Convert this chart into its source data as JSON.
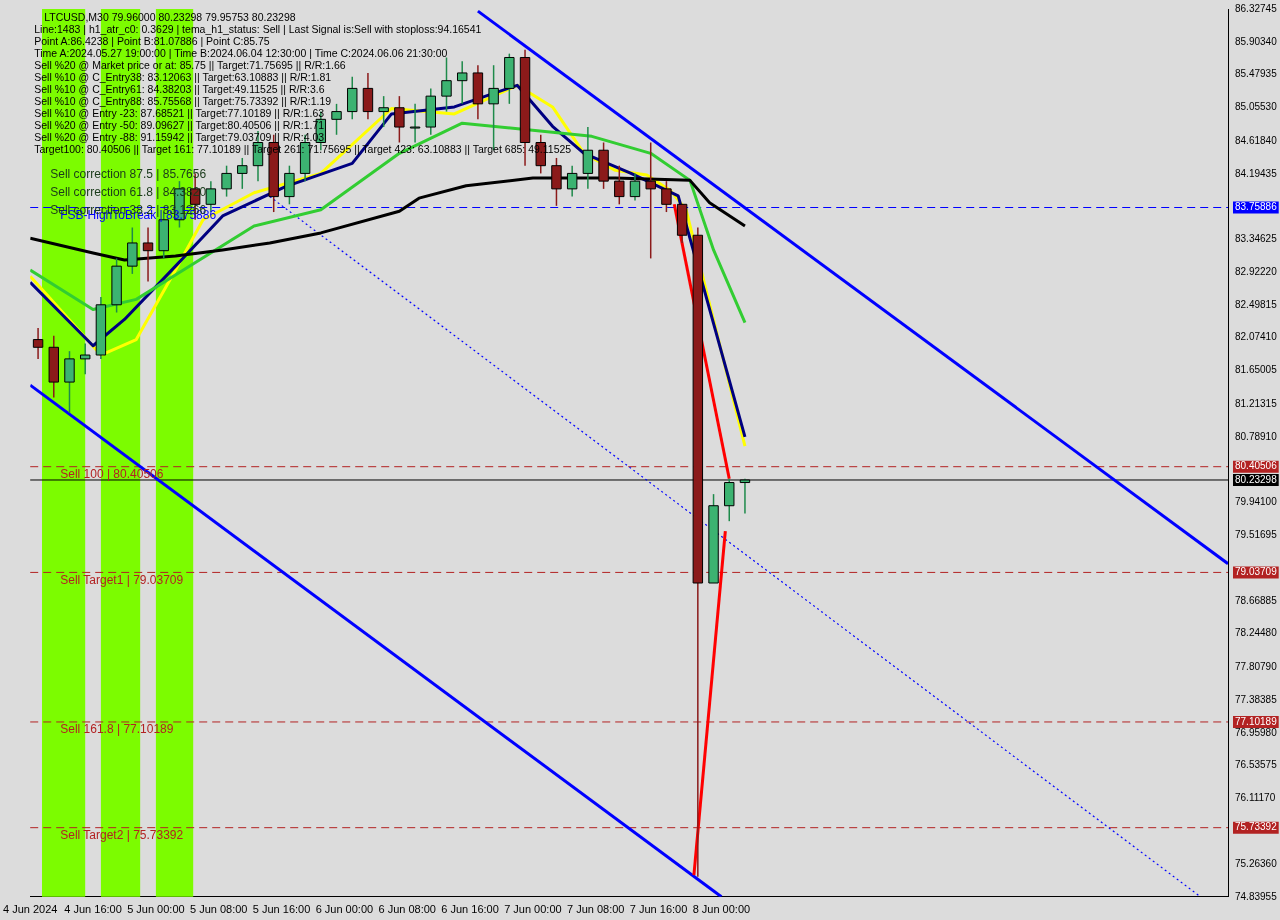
{
  "chart_data": {
    "type": "candlestick",
    "title": "LTCUSD,M30 79.96000 80.23298 79.95753 80.23298",
    "annotations": [
      "Line:1483 | h1_atr_c0: 0.3629 | tema_h1_status: Sell | Last Signal is:Sell with stoploss:94.16541",
      "Point A:86.4238 | Point B:81.07886 | Point C:85.75",
      "Time A:2024.05.27 19:00:00 | Time B:2024.06.04 12:30:00 | Time C:2024.06.06 21:30:00",
      "Sell %20 @ Market price or at: 85.75 || Target:71.75695 || R/R:1.66",
      "Sell %10 @ C_Entry38: 83.12063 || Target:63.10883 || R/R:1.81",
      "Sell %10 @ C_Entry61: 84.38203 || Target:49.11525 || R/R:3.6",
      "Sell %10 @ C_Entry88: 85.75568 || Target:75.73392 || R/R:1.19",
      "Sell %10 @ Entry -23: 87.68521 || Target:77.10189 || R/R:1.63",
      "Sell %20 @ Entry -50: 89.09627 || Target:80.40506 || R/R:1.71",
      "Sell %20 @ Entry -88: 91.15942 || Target:79.03709 || R/R:4.03",
      "Target100: 80.40506 || Target 161: 77.10189 || Target 261: 71.75695 || Target 423: 63.10883 || Target 685: 49.11525",
      "Sell correction 87.5 | 85.7656",
      "Sell correction 61.8 | 84.3820",
      "Sell correction 38.2 | 83.1266"
    ],
    "x": [
      "2024-06-04T09:00",
      "2024-06-04T11:00",
      "2024-06-04T13:00",
      "2024-06-04T15:00",
      "2024-06-04T17:00",
      "2024-06-04T19:00",
      "2024-06-04T21:00",
      "2024-06-04T23:00",
      "2024-06-05T01:00",
      "2024-06-05T03:00",
      "2024-06-05T05:00",
      "2024-06-05T07:00",
      "2024-06-05T09:00",
      "2024-06-05T11:00",
      "2024-06-05T13:00",
      "2024-06-05T15:00",
      "2024-06-05T17:00",
      "2024-06-05T19:00",
      "2024-06-05T21:00",
      "2024-06-05T23:00",
      "2024-06-06T01:00",
      "2024-06-06T03:00",
      "2024-06-06T05:00",
      "2024-06-06T07:00",
      "2024-06-06T09:00",
      "2024-06-06T11:00",
      "2024-06-06T13:00",
      "2024-06-06T15:00",
      "2024-06-06T17:00",
      "2024-06-06T19:00",
      "2024-06-06T21:00",
      "2024-06-06T23:00",
      "2024-06-07T01:00",
      "2024-06-07T03:00",
      "2024-06-07T05:00",
      "2024-06-07T07:00",
      "2024-06-07T09:00",
      "2024-06-07T11:00",
      "2024-06-07T13:00",
      "2024-06-07T15:00",
      "2024-06-07T17:00",
      "2024-06-07T19:00",
      "2024-06-07T21:00",
      "2024-06-07T23:00",
      "2024-06-08T01:00",
      "2024-06-08T03:00"
    ],
    "ohlc": [
      [
        82.05,
        82.2,
        81.8,
        81.95
      ],
      [
        81.95,
        82.1,
        81.3,
        81.5
      ],
      [
        81.5,
        81.9,
        81.1,
        81.8
      ],
      [
        81.8,
        82.0,
        81.6,
        81.85
      ],
      [
        81.85,
        82.6,
        81.8,
        82.5
      ],
      [
        82.5,
        83.1,
        82.4,
        83.0
      ],
      [
        83.0,
        83.5,
        82.9,
        83.3
      ],
      [
        83.3,
        83.5,
        82.8,
        83.2
      ],
      [
        83.2,
        83.7,
        83.1,
        83.6
      ],
      [
        83.6,
        84.1,
        83.5,
        84.0
      ],
      [
        84.0,
        84.2,
        83.6,
        83.8
      ],
      [
        83.8,
        84.1,
        83.7,
        84.0
      ],
      [
        84.0,
        84.3,
        83.9,
        84.2
      ],
      [
        84.2,
        84.4,
        84.0,
        84.3
      ],
      [
        84.3,
        84.75,
        84.1,
        84.6
      ],
      [
        84.6,
        84.7,
        83.7,
        83.9
      ],
      [
        83.9,
        84.3,
        83.8,
        84.2
      ],
      [
        84.2,
        84.7,
        84.1,
        84.6
      ],
      [
        84.6,
        85.0,
        84.5,
        84.9
      ],
      [
        84.9,
        85.1,
        84.7,
        85.0
      ],
      [
        85.0,
        85.45,
        84.9,
        85.3
      ],
      [
        85.3,
        85.5,
        84.9,
        85.0
      ],
      [
        85.0,
        85.2,
        84.8,
        85.05
      ],
      [
        85.05,
        85.2,
        84.6,
        84.8
      ],
      [
        84.8,
        85.1,
        84.6,
        84.8
      ],
      [
        84.8,
        85.3,
        84.7,
        85.2
      ],
      [
        85.2,
        85.7,
        85.0,
        85.4
      ],
      [
        85.4,
        85.65,
        85.1,
        85.5
      ],
      [
        85.5,
        85.6,
        84.9,
        85.1
      ],
      [
        85.1,
        85.6,
        84.5,
        85.3
      ],
      [
        85.3,
        85.75,
        85.1,
        85.7
      ],
      [
        85.7,
        85.8,
        84.3,
        84.6
      ],
      [
        84.6,
        84.7,
        84.2,
        84.3
      ],
      [
        84.3,
        84.4,
        83.78,
        84.0
      ],
      [
        84.0,
        84.3,
        83.9,
        84.2
      ],
      [
        84.2,
        84.8,
        84.0,
        84.5
      ],
      [
        84.5,
        84.6,
        84.0,
        84.1
      ],
      [
        84.1,
        84.3,
        83.8,
        83.9
      ],
      [
        83.9,
        84.2,
        83.85,
        84.1
      ],
      [
        84.1,
        84.6,
        83.1,
        84.0
      ],
      [
        84.0,
        84.1,
        83.7,
        83.8
      ],
      [
        83.8,
        83.8,
        83.3,
        83.4
      ],
      [
        83.4,
        83.5,
        75.1,
        78.9
      ],
      [
        78.9,
        80.05,
        78.9,
        79.9
      ],
      [
        79.9,
        80.25,
        79.7,
        80.2
      ],
      [
        80.2,
        80.25,
        79.8,
        80.23298
      ]
    ],
    "series": [
      {
        "type": "line",
        "color": "#000000",
        "x": [
          "2024-06-04T08:00",
          "2024-06-04T16:00",
          "2024-06-04T20:00",
          "2024-06-05T02:30",
          "2024-06-05T08:30",
          "2024-06-05T14:30",
          "2024-06-05T21:00",
          "2024-06-06T07:00",
          "2024-06-06T09:30",
          "2024-06-06T15:30",
          "2024-06-07T00:00",
          "2024-06-07T10:30",
          "2024-06-07T20:00",
          "2024-06-07T22:30",
          "2024-06-08T03:00"
        ],
        "values": [
          83.36,
          83.17,
          83.08,
          83.13,
          83.21,
          83.3,
          83.43,
          83.71,
          83.88,
          84.04,
          84.14,
          84.14,
          84.11,
          83.82,
          83.52
        ]
      },
      {
        "type": "line",
        "color": "#32cd32",
        "x": [
          "2024-06-04T08:00",
          "2024-06-04T16:00",
          "2024-06-04T21:30",
          "2024-06-05T03:30",
          "2024-06-05T12:30",
          "2024-06-05T21:00",
          "2024-06-06T07:00",
          "2024-06-06T15:00",
          "2024-06-07T07:30",
          "2024-06-07T15:00",
          "2024-06-07T20:00",
          "2024-06-07T23:00",
          "2024-06-08T03:00"
        ],
        "values": [
          82.95,
          82.44,
          82.57,
          82.95,
          83.52,
          83.73,
          84.46,
          84.85,
          84.68,
          84.46,
          84.11,
          83.21,
          82.27
        ]
      },
      {
        "type": "line",
        "color": "#000080",
        "x": [
          "2024-06-04T08:00",
          "2024-06-04T16:00",
          "2024-06-04T20:00",
          "2024-06-05T02:30",
          "2024-06-05T08:30",
          "2024-06-05T16:30",
          "2024-06-06T01:00",
          "2024-06-06T06:00",
          "2024-06-06T14:00",
          "2024-06-06T22:00",
          "2024-06-07T02:30",
          "2024-06-07T06:30",
          "2024-06-07T12:30",
          "2024-06-07T18:30",
          "2024-06-08T03:00"
        ],
        "values": [
          82.79,
          81.97,
          82.31,
          83.0,
          83.65,
          84.03,
          84.33,
          84.97,
          85.06,
          85.34,
          84.81,
          84.46,
          84.2,
          83.91,
          80.79
        ]
      },
      {
        "type": "line",
        "color": "#ffff00",
        "x": [
          "2024-06-04T08:00",
          "2024-06-04T17:00",
          "2024-06-04T21:30",
          "2024-06-05T02:30",
          "2024-06-05T06:00",
          "2024-06-05T12:30",
          "2024-06-05T21:00",
          "2024-06-06T06:00",
          "2024-06-06T14:00",
          "2024-06-06T22:00",
          "2024-06-07T02:30",
          "2024-06-07T06:30",
          "2024-06-07T10:30",
          "2024-06-07T14:30",
          "2024-06-07T17:30",
          "2024-06-07T19:30",
          "2024-06-08T03:00"
        ],
        "values": [
          82.87,
          81.85,
          82.05,
          82.95,
          83.6,
          83.95,
          84.2,
          85.04,
          84.97,
          85.34,
          85.06,
          84.46,
          84.24,
          84.18,
          83.98,
          83.73,
          80.67
        ]
      },
      {
        "type": "line",
        "color": "#ff0000",
        "x": [
          "2024-06-07T18:00",
          "2024-06-08T01:00"
        ],
        "values": [
          83.8,
          80.25
        ]
      },
      {
        "type": "line",
        "color": "#ff0000",
        "x": [
          "2024-06-07T20:30",
          "2024-06-08T00:30"
        ],
        "values": [
          75.12,
          79.57
        ]
      },
      {
        "type": "line",
        "color": "#0000ff",
        "x": [
          "2024-06-06T17:00",
          "2024-06-10T16:30"
        ],
        "values": [
          86.3,
          79.15
        ]
      },
      {
        "type": "line",
        "color": "#0000ff",
        "x": [
          "2024-06-04T08:00",
          "2024-06-08T00:00"
        ],
        "values": [
          81.46,
          74.84
        ]
      },
      {
        "type": "line",
        "color": "#0000ff",
        "line_style": "dotted",
        "x": [
          "2024-06-05T14:30",
          "2024-06-10T13:00"
        ],
        "values": [
          83.9,
          74.84
        ]
      }
    ],
    "bands": [
      {
        "axis": "x",
        "from": "2024-06-04T09:30",
        "to": "2024-06-04T15:00",
        "color": "#7cfc00"
      },
      {
        "axis": "x",
        "from": "2024-06-04T17:00",
        "to": "2024-06-04T22:00",
        "color": "#7cfc00"
      },
      {
        "axis": "x",
        "from": "2024-06-05T00:00",
        "to": "2024-06-05T04:45",
        "color": "#7cfc00"
      }
    ],
    "ref_lines": [
      {
        "axis": "y",
        "value": 83.75886,
        "label": "FSB-HighToBreak | 83.75886",
        "color": "#0000ff",
        "line_style": "dashed"
      },
      {
        "axis": "y",
        "value": 80.40506,
        "label": "Sell 100 | 80.40506",
        "color": "#b22222",
        "line_style": "dashed"
      },
      {
        "axis": "y",
        "value": 80.23298,
        "label": null,
        "color": "#000000",
        "line_style": "solid"
      },
      {
        "axis": "y",
        "value": 79.03709,
        "label": "Sell Target1 | 79.03709",
        "color": "#b22222",
        "line_style": "dashed"
      },
      {
        "axis": "y",
        "value": 77.10189,
        "label": "Sell 161.8 | 77.10189",
        "color": "#b22222",
        "line_style": "dashed"
      },
      {
        "axis": "y",
        "value": 75.73392,
        "label": "Sell Target2 | 75.73392",
        "color": "#b22222",
        "line_style": "dashed"
      }
    ],
    "xlim": [
      "2024-06-04T08:00",
      "2024-06-10T16:30"
    ],
    "ylim": [
      74.83955,
      86.32745
    ],
    "xticks": [
      {
        "value": "2024-06-04T08:00",
        "label": "4 Jun 2024"
      },
      {
        "value": "2024-06-04T16:00",
        "label": "4 Jun 16:00"
      },
      {
        "value": "2024-06-05T00:00",
        "label": "5 Jun 00:00"
      },
      {
        "value": "2024-06-05T08:00",
        "label": "5 Jun 08:00"
      },
      {
        "value": "2024-06-05T16:00",
        "label": "5 Jun 16:00"
      },
      {
        "value": "2024-06-06T00:00",
        "label": "6 Jun 00:00"
      },
      {
        "value": "2024-06-06T08:00",
        "label": "6 Jun 08:00"
      },
      {
        "value": "2024-06-06T16:00",
        "label": "6 Jun 16:00"
      },
      {
        "value": "2024-06-07T00:00",
        "label": "7 Jun 00:00"
      },
      {
        "value": "2024-06-07T08:00",
        "label": "7 Jun 08:00"
      },
      {
        "value": "2024-06-07T16:00",
        "label": "7 Jun 16:00"
      },
      {
        "value": "2024-06-08T00:00",
        "label": "8 Jun 00:00"
      }
    ],
    "yticks": [
      {
        "value": 86.32745,
        "label": "86.32745"
      },
      {
        "value": 85.9034,
        "label": "85.90340"
      },
      {
        "value": 85.47935,
        "label": "85.47935"
      },
      {
        "value": 85.0553,
        "label": "85.05530"
      },
      {
        "value": 84.6184,
        "label": "84.61840"
      },
      {
        "value": 84.19435,
        "label": "84.19435"
      },
      {
        "value": 83.75886,
        "label": "83.75886"
      },
      {
        "value": 83.34625,
        "label": "83.34625"
      },
      {
        "value": 82.9222,
        "label": "82.92220"
      },
      {
        "value": 82.49815,
        "label": "82.49815"
      },
      {
        "value": 82.0741,
        "label": "82.07410"
      },
      {
        "value": 81.65005,
        "label": "81.65005"
      },
      {
        "value": 81.21315,
        "label": "81.21315"
      },
      {
        "value": 80.7891,
        "label": "80.78910"
      },
      {
        "value": 80.40506,
        "label": "80.40506"
      },
      {
        "value": 80.23298,
        "label": "80.23298"
      },
      {
        "value": 79.941,
        "label": "79.94100"
      },
      {
        "value": 79.51695,
        "label": "79.51695"
      },
      {
        "value": 79.03709,
        "label": "79.03709"
      },
      {
        "value": 78.66885,
        "label": "78.66885"
      },
      {
        "value": 78.2448,
        "label": "78.24480"
      },
      {
        "value": 77.8079,
        "label": "77.80790"
      },
      {
        "value": 77.38385,
        "label": "77.38385"
      },
      {
        "value": 77.10189,
        "label": "77.10189"
      },
      {
        "value": 76.9598,
        "label": "76.95980"
      },
      {
        "value": 76.53575,
        "label": "76.53575"
      },
      {
        "value": 76.1117,
        "label": "76.11170"
      },
      {
        "value": 75.73392,
        "label": "75.73392"
      },
      {
        "value": 75.2636,
        "label": "75.26360"
      },
      {
        "value": 74.83955,
        "label": "74.83955"
      }
    ]
  }
}
